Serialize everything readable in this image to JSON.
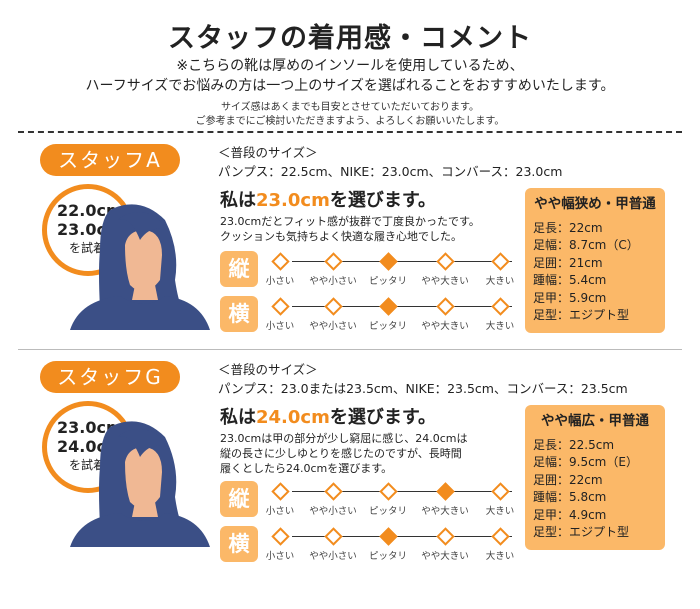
{
  "header": {
    "title": "スタッフの着用感・コメント",
    "line1": "※こちらの靴は厚めのインソールを使用しているため、",
    "line2": "ハーフサイズでお悩みの方は一つ上のサイズを選ばれることをおすすめいたします。",
    "note1": "サイズ感はあくまでも目安とさせていただいております。",
    "note2": "ご参考までにご検討いただきますよう、よろしくお願いいたします。"
  },
  "scale_labels": [
    "小さい",
    "やや小さい",
    "ピッタリ",
    "やや大きい",
    "大きい"
  ],
  "colors": {
    "accent": "#f28c1e",
    "box": "#fbb868"
  },
  "staff": [
    {
      "name": "スタッフA",
      "tried1": "22.0cm",
      "tried2": "23.0cm",
      "tried_suffix": "を試着",
      "usual_head": "＜普段のサイズ＞",
      "usual": "パンプス：22.5cm、NIKE：23.0cm、コンバース：23.0cm",
      "choose_pre": "私は",
      "choose_size": "23.0cm",
      "choose_post": "を選びます。",
      "comment": "23.0cmだとフィット感が抜群で丁度良かったです。\nクッションも気持ちよく快適な履き心地でした。",
      "tate_label": "縦",
      "yoko_label": "横",
      "tate": 2,
      "yoko": 2,
      "foot_type": "やや幅狭め・甲普通",
      "foot": [
        "足長：22cm",
        "足幅：8.7cm（C）",
        "足囲：21cm",
        "踵幅：5.4cm",
        "足甲：5.9cm",
        "足型：エジプト型"
      ]
    },
    {
      "name": "スタッフG",
      "tried1": "23.0cm",
      "tried2": "24.0cm",
      "tried_suffix": "を試着",
      "usual_head": "＜普段のサイズ＞",
      "usual": "パンプス：23.0または23.5cm、NIKE：23.5cm、コンバース：23.5cm",
      "choose_pre": "私は",
      "choose_size": "24.0cm",
      "choose_post": "を選びます。",
      "comment": "23.0cmは甲の部分が少し窮屈に感じ、24.0cmは\n縦の長さに少しゆとりを感じたのですが、長時間\n履くとしたら24.0cmを選びます。",
      "tate_label": "縦",
      "yoko_label": "横",
      "tate": 3,
      "yoko": 2,
      "foot_type": "やや幅広・甲普通",
      "foot": [
        "足長：22.5cm",
        "足幅：9.5cm（E）",
        "足囲：22cm",
        "踵幅：5.8cm",
        "足甲：4.9cm",
        "足型：エジプト型"
      ]
    }
  ]
}
